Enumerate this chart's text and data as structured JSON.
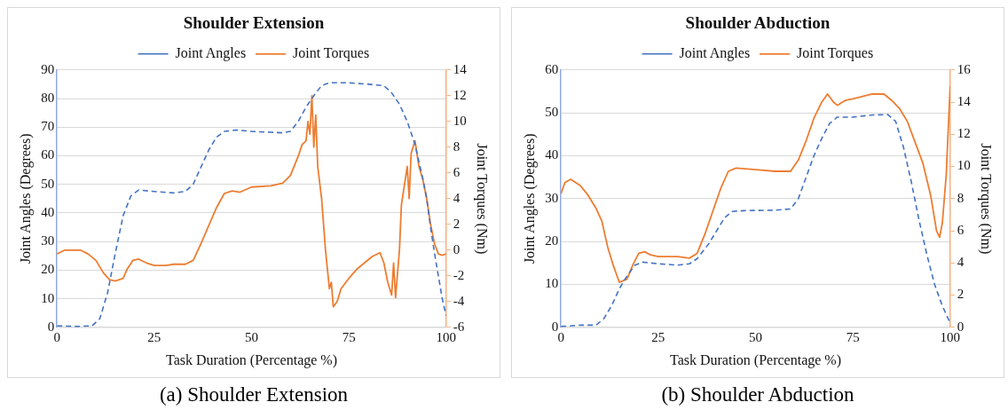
{
  "chart_data": [
    {
      "type": "line",
      "title": "Shoulder Extension",
      "xlabel": "Task Duration (Percentage %)",
      "ylabel": "Joint Angles (Degrees)",
      "y2label": "Joint Torques (Nm)",
      "annotations": [
        "(a) Shoulder Extension"
      ],
      "xlim": [
        0,
        100
      ],
      "xticks": [
        0,
        25,
        50,
        75,
        100
      ],
      "ylim": [
        0,
        90
      ],
      "yticks": [
        0,
        10,
        20,
        30,
        40,
        50,
        60,
        70,
        80,
        90
      ],
      "y2lim": [
        -6,
        14
      ],
      "y2ticks": [
        -6,
        -4,
        -2,
        0,
        2,
        4,
        6,
        8,
        10,
        12,
        14
      ],
      "grid": "y",
      "legend": "top",
      "marker": "none",
      "series": [
        {
          "name": "Joint Angles",
          "color": "#4472c4",
          "line_style": "dashed",
          "x": [
            0,
            5,
            9,
            11,
            13,
            15,
            17,
            19,
            21,
            25,
            30,
            33,
            35,
            37,
            39,
            41,
            43,
            46,
            50,
            55,
            58,
            60,
            62,
            64,
            66,
            68,
            70,
            75,
            80,
            84,
            86,
            88,
            90,
            92,
            93,
            94,
            95,
            96,
            97,
            98,
            99,
            100
          ],
          "values": [
            0.5,
            0.3,
            0.5,
            3,
            12,
            26,
            39,
            46,
            48,
            47.5,
            47,
            47.5,
            50,
            56,
            62,
            66.5,
            68.5,
            69,
            68.5,
            68.2,
            68,
            68.5,
            72,
            77,
            81,
            84.5,
            85.5,
            85.5,
            85,
            84.5,
            82,
            78,
            72,
            64,
            58,
            52,
            45,
            35,
            26,
            18,
            10,
            4
          ]
        },
        {
          "name": "Joint Torques",
          "color": "#ed7d31",
          "line_style": "solid",
          "axis": "y2",
          "x": [
            0,
            2,
            6,
            8,
            10,
            12,
            13.5,
            15,
            17,
            18,
            19.5,
            21,
            23,
            25,
            28,
            30,
            33,
            35,
            37,
            39,
            41,
            43,
            45,
            47,
            50,
            55,
            58,
            60,
            62,
            63,
            64,
            64.5,
            65,
            65.5,
            66,
            66.5,
            67,
            68,
            69,
            70,
            70.5,
            71,
            72,
            73,
            75,
            77,
            79,
            81,
            83,
            84,
            85,
            86,
            86.5,
            87,
            88,
            88.5,
            89,
            90,
            90.5,
            91,
            92,
            93,
            94,
            95,
            96,
            97,
            98,
            99,
            100
          ],
          "values": [
            -0.3,
            0,
            0,
            -0.3,
            -0.8,
            -1.8,
            -2.3,
            -2.4,
            -2.2,
            -1.5,
            -0.8,
            -0.7,
            -1,
            -1.2,
            -1.2,
            -1.1,
            -1.1,
            -0.8,
            0.5,
            1.9,
            3.3,
            4.4,
            4.6,
            4.5,
            4.9,
            5,
            5.2,
            5.8,
            7.3,
            8.2,
            8.5,
            10,
            9,
            12,
            8,
            10.5,
            6.5,
            4,
            0,
            -3,
            -2.5,
            -4.4,
            -4,
            -3,
            -2.2,
            -1.5,
            -1,
            -0.5,
            -0.2,
            -1,
            -2.5,
            -3.5,
            -1,
            -3.7,
            0,
            3.5,
            4.5,
            6.5,
            4,
            7.5,
            8.5,
            6.5,
            5.5,
            4,
            2,
            0.5,
            -0.3,
            -0.4,
            -0.3
          ]
        }
      ]
    },
    {
      "type": "line",
      "title": "Shoulder Abduction",
      "xlabel": "Task Duration (Percentage %)",
      "ylabel": "Joint Angles (Degrees)",
      "y2label": "Joint Torques (Nm)",
      "annotations": [
        "(b) Shoulder Abduction"
      ],
      "xlim": [
        0,
        100
      ],
      "xticks": [
        0,
        25,
        50,
        75,
        100
      ],
      "ylim": [
        0,
        60
      ],
      "yticks": [
        0,
        10,
        20,
        30,
        40,
        50,
        60
      ],
      "y2lim": [
        0,
        16
      ],
      "y2ticks": [
        0,
        2,
        4,
        6,
        8,
        10,
        12,
        14,
        16
      ],
      "grid": "y",
      "legend": "top",
      "marker": "none",
      "series": [
        {
          "name": "Joint Angles",
          "color": "#4472c4",
          "line_style": "dashed",
          "x": [
            0,
            5,
            9,
            11,
            13,
            15,
            17,
            19,
            21,
            25,
            30,
            33,
            35,
            38,
            40,
            42,
            44,
            47,
            55,
            59,
            61,
            63,
            65,
            67,
            69,
            71,
            75,
            80,
            84,
            86,
            88,
            90,
            92,
            94,
            96,
            98,
            100
          ],
          "values": [
            0.2,
            0.5,
            0.5,
            2,
            5,
            9,
            12,
            14.5,
            15.2,
            14.8,
            14.5,
            14.8,
            16,
            19.5,
            22.5,
            25.5,
            27,
            27.2,
            27.3,
            27.6,
            30,
            35,
            40,
            44,
            47.5,
            49,
            49,
            49.5,
            49.6,
            48,
            42,
            34,
            25,
            17,
            10,
            5,
            1
          ]
        },
        {
          "name": "Joint Torques",
          "color": "#ed7d31",
          "line_style": "solid",
          "axis": "y2",
          "x": [
            0,
            1,
            2.5,
            5,
            7,
            9,
            10.5,
            12,
            13.5,
            15,
            17,
            18.5,
            20,
            21.5,
            23,
            25,
            30,
            33,
            35,
            37,
            39,
            41,
            43,
            45,
            50,
            55,
            59,
            61,
            63,
            65,
            67,
            68.5,
            70,
            71,
            73,
            75,
            80,
            83,
            85,
            87,
            89,
            91,
            93,
            95,
            96.5,
            97.3,
            98,
            99,
            100
          ],
          "values": [
            8.3,
            9,
            9.2,
            8.8,
            8.2,
            7.4,
            6.6,
            5,
            3.8,
            2.8,
            3,
            3.9,
            4.6,
            4.7,
            4.5,
            4.4,
            4.4,
            4.3,
            4.6,
            5.8,
            7.2,
            8.6,
            9.7,
            9.9,
            9.8,
            9.7,
            9.7,
            10.4,
            11.6,
            13,
            14,
            14.5,
            14,
            13.8,
            14.1,
            14.2,
            14.5,
            14.5,
            14.1,
            13.6,
            12.8,
            11.5,
            10.2,
            8.2,
            6,
            5.6,
            6.5,
            9.5,
            15
          ]
        }
      ]
    }
  ]
}
